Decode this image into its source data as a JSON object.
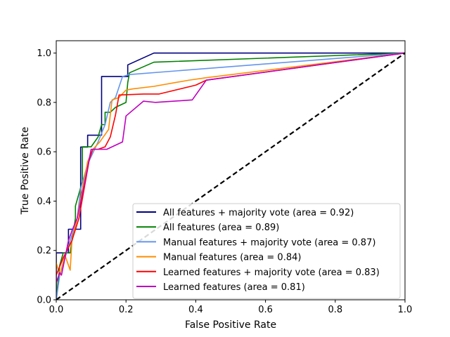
{
  "chart_data": {
    "type": "line",
    "title": "",
    "xlabel": "False Positive Rate",
    "ylabel": "True Positive Rate",
    "xlim": [
      0.0,
      1.0
    ],
    "ylim": [
      0.0,
      1.05
    ],
    "xticks": [
      0.0,
      0.2,
      0.4,
      0.6,
      0.8,
      1.0
    ],
    "yticks": [
      0.0,
      0.2,
      0.4,
      0.6,
      0.8,
      1.0
    ],
    "xtick_labels": [
      "0.0",
      "0.2",
      "0.4",
      "0.6",
      "0.8",
      "1.0"
    ],
    "ytick_labels": [
      "0.0",
      "0.2",
      "0.4",
      "0.6",
      "0.8",
      "1.0"
    ],
    "grid": false,
    "legend_position": "lower-right",
    "series": [
      {
        "name": "All features + majority vote (area = 0.92)",
        "color": "#000080",
        "x": [
          0.0,
          0.0,
          0.035,
          0.035,
          0.07,
          0.07,
          0.09,
          0.09,
          0.13,
          0.13,
          0.205,
          0.205,
          0.28,
          1.0
        ],
        "y": [
          0.0,
          0.19,
          0.19,
          0.286,
          0.286,
          0.619,
          0.619,
          0.667,
          0.667,
          0.905,
          0.905,
          0.952,
          1.0,
          1.0
        ]
      },
      {
        "name": "All features (area = 0.89)",
        "color": "#008000",
        "x": [
          0.0,
          0.01,
          0.02,
          0.04,
          0.045,
          0.055,
          0.055,
          0.075,
          0.075,
          0.09,
          0.1,
          0.12,
          0.13,
          0.14,
          0.14,
          0.155,
          0.17,
          0.2,
          0.205,
          0.21,
          0.28,
          1.0
        ],
        "y": [
          0.0,
          0.14,
          0.19,
          0.19,
          0.24,
          0.33,
          0.38,
          0.48,
          0.62,
          0.62,
          0.62,
          0.66,
          0.71,
          0.71,
          0.76,
          0.76,
          0.78,
          0.8,
          0.88,
          0.92,
          0.963,
          1.0
        ],
        "label_note": ""
      },
      {
        "name": "Manual features + majority vote (area = 0.87)",
        "color": "#6495ED",
        "x": [
          0.0,
          0.01,
          0.04,
          0.06,
          0.07,
          0.09,
          0.12,
          0.14,
          0.155,
          0.17,
          0.19,
          0.21,
          1.0
        ],
        "y": [
          0.0,
          0.1,
          0.24,
          0.33,
          0.45,
          0.55,
          0.64,
          0.71,
          0.8,
          0.82,
          0.905,
          0.913,
          1.0
        ]
      },
      {
        "name": "Manual features (area = 0.84)",
        "color": "#FF8C00",
        "x": [
          0.0,
          0.01,
          0.025,
          0.035,
          0.04,
          0.045,
          0.06,
          0.075,
          0.09,
          0.105,
          0.125,
          0.15,
          0.16,
          0.18,
          0.2,
          0.22,
          0.28,
          0.38,
          0.43,
          1.0
        ],
        "y": [
          0.15,
          0.1,
          0.18,
          0.14,
          0.12,
          0.24,
          0.33,
          0.45,
          0.56,
          0.61,
          0.64,
          0.69,
          0.81,
          0.82,
          0.85,
          0.855,
          0.865,
          0.89,
          0.9,
          1.0
        ]
      },
      {
        "name": "Learned features + majority vote (area = 0.83)",
        "color": "#FF0000",
        "x": [
          0.0,
          0.02,
          0.045,
          0.065,
          0.08,
          0.095,
          0.105,
          0.12,
          0.14,
          0.155,
          0.17,
          0.18,
          0.25,
          0.295,
          0.4,
          0.43,
          1.0
        ],
        "y": [
          0.1,
          0.17,
          0.24,
          0.33,
          0.45,
          0.57,
          0.61,
          0.61,
          0.62,
          0.66,
          0.75,
          0.83,
          0.834,
          0.834,
          0.87,
          0.89,
          1.0
        ]
      },
      {
        "name": "Learned features (area = 0.81)",
        "color": "#BF00BF",
        "x": [
          0.0,
          0.01,
          0.015,
          0.035,
          0.045,
          0.06,
          0.075,
          0.085,
          0.1,
          0.115,
          0.145,
          0.16,
          0.19,
          0.2,
          0.25,
          0.285,
          0.39,
          0.43,
          1.0
        ],
        "y": [
          0.07,
          0.11,
          0.1,
          0.24,
          0.28,
          0.33,
          0.43,
          0.5,
          0.61,
          0.61,
          0.61,
          0.62,
          0.64,
          0.745,
          0.805,
          0.8,
          0.81,
          0.89,
          1.0
        ]
      },
      {
        "name": "",
        "color": "#000000",
        "dashed": true,
        "x": [
          0.0,
          1.0
        ],
        "y": [
          0.0,
          1.0
        ]
      }
    ]
  }
}
